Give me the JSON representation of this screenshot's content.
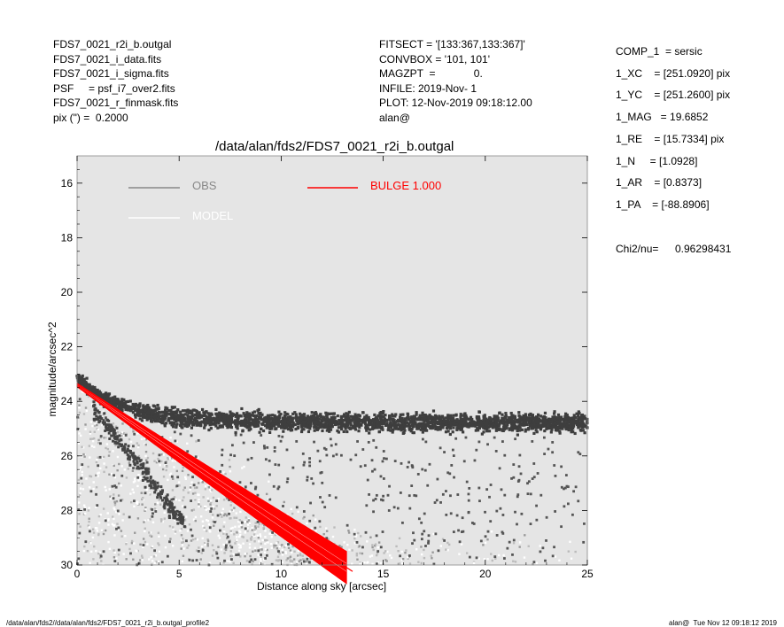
{
  "header_left": [
    "FDS7_0021_r2i_b.outgal",
    "FDS7_0021_i_data.fits",
    "FDS7_0021_i_sigma.fits",
    "PSF     = psf_i7_over2.fits",
    "FDS7_0021_r_finmask.fits",
    "pix (\") =  0.2000"
  ],
  "header_mid": [
    "FITSECT = '[133:367,133:367]'",
    "CONVBOX = '101, 101'",
    "MAGZPT  =             0.",
    "INFILE: 2019-Nov- 1",
    "PLOT: 12-Nov-2019 09:18:12.00",
    "alan@"
  ],
  "params": [
    "COMP_1  = sersic",
    "1_XC    = [251.0920] pix",
    "1_YC    = [251.2600] pix",
    "1_MAG   = 19.6852",
    "1_RE    = [15.7334] pix",
    "1_N     = [1.0928]",
    "1_AR    = [0.8373]",
    "1_PA    = [-88.8906]"
  ],
  "chi2_label": "Chi2/nu=",
  "chi2_value": "0.96298431",
  "footer_left": "/data/alan/fds2//data/alan/fds2/FDS7_0021_r2i_b.outgal_profile2",
  "footer_right": "alan@  Tue Nov 12 09:18:12 2019",
  "chart_data": {
    "type": "scatter",
    "title": "/data/alan/fds2/FDS7_0021_r2i_b.outgal",
    "xlabel": "Distance along sky [arcsec]",
    "ylabel": "magnitude/arcsec^2",
    "xlim": [
      0,
      25
    ],
    "ylim": [
      30,
      15
    ],
    "y_inverted": true,
    "xticks": [
      0,
      5,
      10,
      15,
      20,
      25
    ],
    "yticks": [
      16,
      18,
      20,
      22,
      24,
      26,
      28,
      30
    ],
    "background": "#e5e5e5",
    "legend": [
      {
        "name": "OBS",
        "color": "#888888"
      },
      {
        "name": "MODEL",
        "color": "#ffffff"
      },
      {
        "name": "BULGE  1.000",
        "color": "#ff0000"
      }
    ],
    "series": [
      {
        "name": "OBS",
        "color": "#444444",
        "description_points": [
          [
            0.2,
            23.1
          ],
          [
            1,
            23.3
          ],
          [
            2,
            23.7
          ],
          [
            3,
            24.0
          ],
          [
            5,
            24.3
          ],
          [
            8,
            24.5
          ],
          [
            12,
            24.6
          ],
          [
            16,
            24.6
          ],
          [
            20,
            24.7
          ],
          [
            25,
            24.8
          ]
        ]
      },
      {
        "name": "MODEL",
        "color": "#ffffff",
        "points": [
          [
            0,
            23.4
          ],
          [
            1,
            23.9
          ],
          [
            2,
            24.5
          ],
          [
            5,
            25.8
          ],
          [
            8,
            27.1
          ],
          [
            10,
            28.0
          ],
          [
            12.5,
            29.5
          ]
        ]
      },
      {
        "name": "BULGE  1.000",
        "color": "#ff0000",
        "points": [
          [
            0,
            23.4
          ],
          [
            1,
            23.9
          ],
          [
            2,
            24.5
          ],
          [
            5,
            25.8
          ],
          [
            8,
            27.1
          ],
          [
            10,
            28.0
          ],
          [
            12.5,
            29.5
          ],
          [
            13.0,
            30.0
          ]
        ]
      }
    ]
  }
}
